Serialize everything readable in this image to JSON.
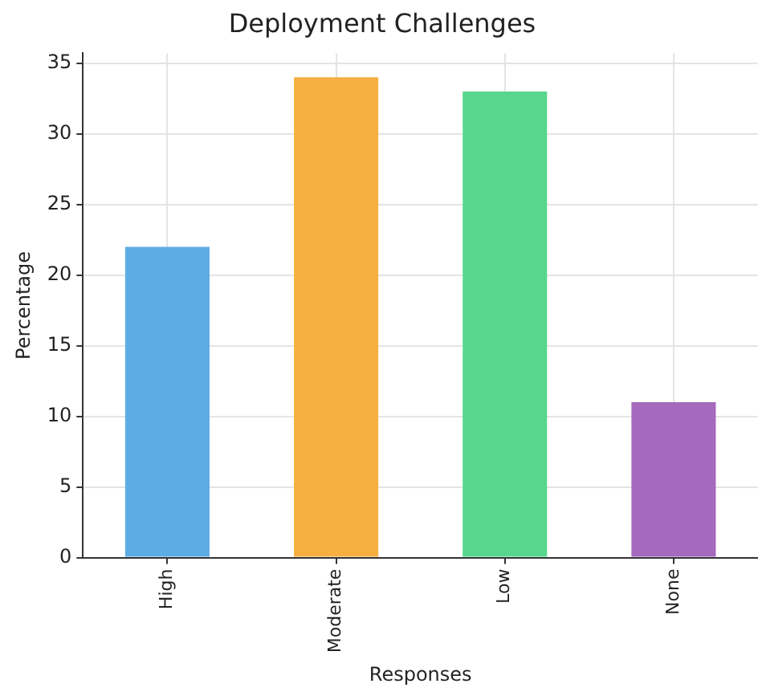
{
  "chart_data": {
    "type": "bar",
    "title": "Deployment Challenges",
    "xlabel": "Responses",
    "ylabel": "Percentage",
    "categories": [
      "High",
      "Moderate",
      "Low",
      "None"
    ],
    "values": [
      22,
      34,
      33,
      11
    ],
    "colors": [
      "#5dade2",
      "#f5b041",
      "#58d68d",
      "#a569bd"
    ],
    "ylim": [
      0,
      35.7
    ],
    "yticks": [
      0,
      5,
      10,
      15,
      20,
      25,
      30,
      35
    ],
    "grid": true,
    "legend": false
  }
}
